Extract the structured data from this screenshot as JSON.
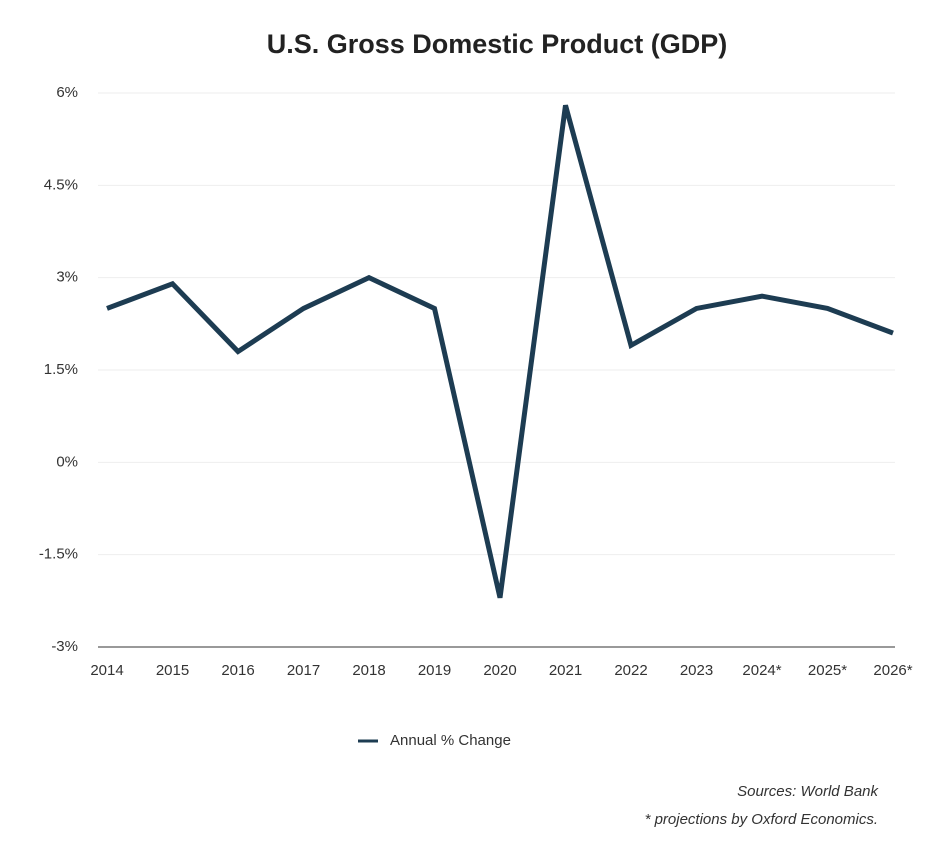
{
  "chart_data": {
    "type": "line",
    "title": "U.S. Gross Domestic Product (GDP)",
    "categories": [
      "2014",
      "2015",
      "2016",
      "2017",
      "2018",
      "2019",
      "2020",
      "2021",
      "2022",
      "2023",
      "2024*",
      "2025*",
      "2026*"
    ],
    "series": [
      {
        "name": "Annual % Change",
        "color": "#1d3c52",
        "values": [
          2.5,
          2.9,
          1.8,
          2.5,
          3.0,
          2.5,
          -2.2,
          5.8,
          1.9,
          2.5,
          2.7,
          2.5,
          2.1
        ]
      }
    ],
    "ylim": [
      -3,
      6
    ],
    "yticks": [
      {
        "value": -3,
        "label": "-3%"
      },
      {
        "value": -1.5,
        "label": "-1.5%"
      },
      {
        "value": 0,
        "label": "0%"
      },
      {
        "value": 1.5,
        "label": "1.5%"
      },
      {
        "value": 3,
        "label": "3%"
      },
      {
        "value": 4.5,
        "label": "4.5%"
      },
      {
        "value": 6,
        "label": "6%"
      }
    ],
    "grid": true,
    "legend": "bottom",
    "notes": [
      "Sources: World Bank",
      "* projections by Oxford Economics."
    ]
  }
}
